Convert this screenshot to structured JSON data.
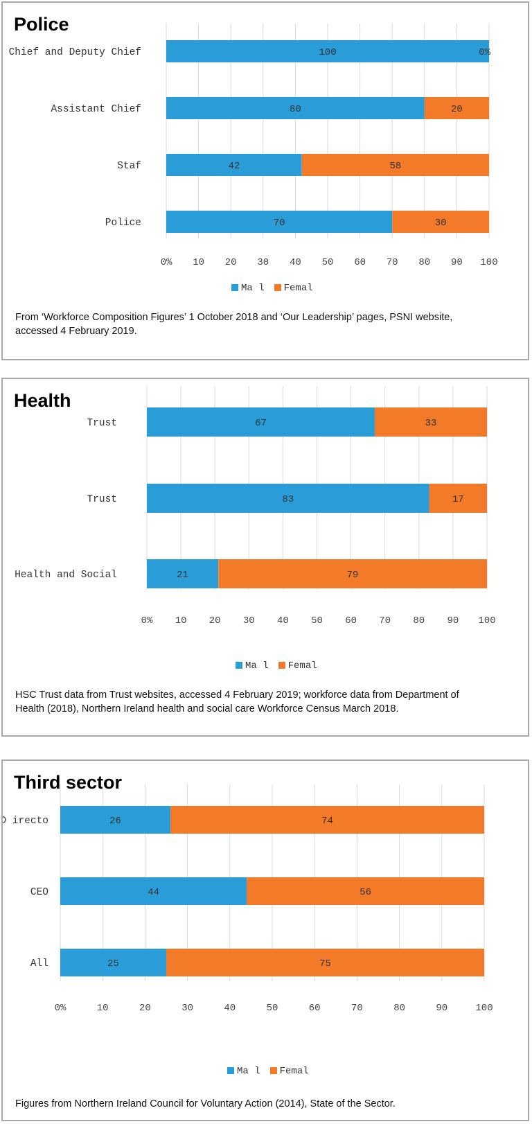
{
  "colors": {
    "male": "#2a9dd8",
    "female": "#f27a29",
    "grid": "#d9d9d9"
  },
  "panels": [
    {
      "title": "Police",
      "source": "From ‘Workforce Composition Figures’ 1 October 2018 and ‘Our Leadership’ pages, PSNI website, accessed 4 February 2019."
    },
    {
      "title": "Health",
      "source": "HSC Trust data from Trust websites, accessed 4 February 2019; workforce data from Department of Health (2018), Northern Ireland health and social care Workforce Census March 2018."
    },
    {
      "title": "Third sector",
      "source": "Figures from Northern Ireland Council for Voluntary Action (2014), State of the Sector."
    }
  ],
  "chart_data": [
    {
      "type": "bar",
      "orientation": "horizontal",
      "stacked": true,
      "categories": [
        "Chief and Deputy Chief",
        "Assistant Chief",
        "Staf",
        "Police"
      ],
      "series": [
        {
          "name": "Ma l",
          "values": [
            100,
            80,
            42,
            70
          ]
        },
        {
          "name": "Femal",
          "values": [
            0,
            20,
            58,
            30
          ]
        }
      ],
      "value_labels": [
        [
          "100",
          "80",
          "42",
          "70"
        ],
        [
          "0%",
          "20",
          "58",
          "30"
        ]
      ],
      "xticks": [
        "0%",
        "10",
        "20",
        "30",
        "40",
        "50",
        "60",
        "70",
        "80",
        "90",
        "100"
      ],
      "xlim": [
        0,
        100
      ],
      "grid": true,
      "legend": "bottom"
    },
    {
      "type": "bar",
      "orientation": "horizontal",
      "stacked": true,
      "categories": [
        "Trust",
        "Trust",
        "Health and Social"
      ],
      "series": [
        {
          "name": "Ma l",
          "values": [
            67,
            83,
            21
          ]
        },
        {
          "name": "Femal",
          "values": [
            33,
            17,
            79
          ]
        }
      ],
      "value_labels": [
        [
          "67",
          "83",
          "21"
        ],
        [
          "33",
          "17",
          "79"
        ]
      ],
      "xticks": [
        "0%",
        "10",
        "20",
        "30",
        "40",
        "50",
        "60",
        "70",
        "80",
        "90",
        "100"
      ],
      "xlim": [
        0,
        100
      ],
      "grid": true,
      "legend": "bottom"
    },
    {
      "type": "bar",
      "orientation": "horizontal",
      "stacked": true,
      "categories": [
        "D irecto",
        "CEO",
        "All"
      ],
      "series": [
        {
          "name": "Ma l",
          "values": [
            26,
            44,
            25
          ]
        },
        {
          "name": "Femal",
          "values": [
            74,
            56,
            75
          ]
        }
      ],
      "value_labels": [
        [
          "26",
          "44",
          "25"
        ],
        [
          "74",
          "56",
          "75"
        ]
      ],
      "xticks": [
        "0%",
        "10",
        "20",
        "30",
        "40",
        "50",
        "60",
        "70",
        "80",
        "90",
        "100"
      ],
      "xlim": [
        0,
        100
      ],
      "grid": true,
      "legend": "bottom"
    }
  ]
}
